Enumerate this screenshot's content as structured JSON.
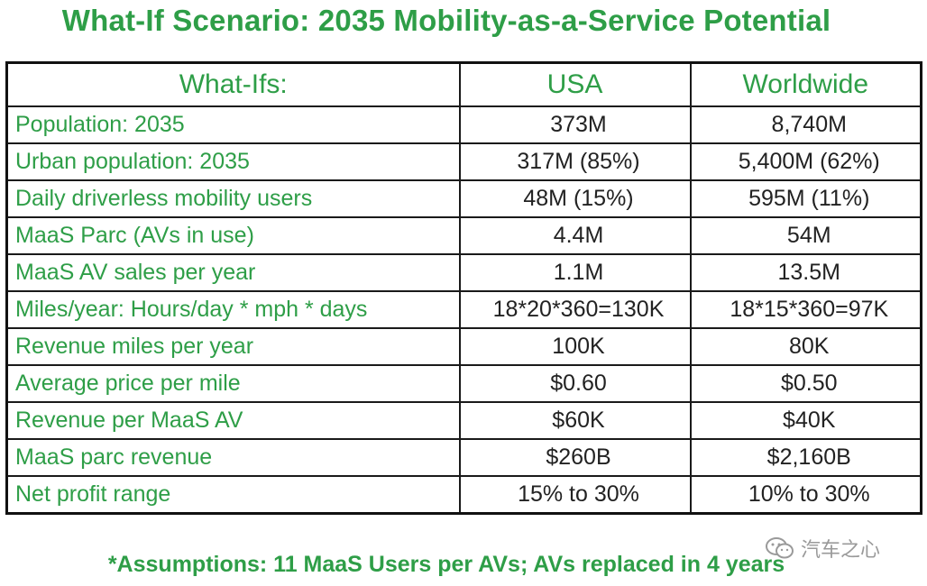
{
  "title": "What-If Scenario: 2035 Mobility-as-a-Service Potential",
  "table": {
    "headers": [
      "What-Ifs:",
      "USA",
      "Worldwide"
    ],
    "rows": [
      {
        "label": "Population: 2035",
        "usa": "373M",
        "world": "8,740M"
      },
      {
        "label": "Urban population: 2035",
        "usa": "317M (85%)",
        "world": "5,400M (62%)"
      },
      {
        "label": "Daily driverless mobility users",
        "usa": "48M (15%)",
        "world": "595M (11%)"
      },
      {
        "label": "MaaS Parc (AVs in use)",
        "usa": "4.4M",
        "world": "54M"
      },
      {
        "label": "MaaS AV sales per year",
        "usa": "1.1M",
        "world": "13.5M"
      },
      {
        "label": "Miles/year: Hours/day * mph * days",
        "usa": "18*20*360=130K",
        "world": "18*15*360=97K"
      },
      {
        "label": "Revenue miles per year",
        "usa": "100K",
        "world": "80K"
      },
      {
        "label": "Average price per mile",
        "usa": "$0.60",
        "world": "$0.50"
      },
      {
        "label": "Revenue per MaaS AV",
        "usa": "$60K",
        "world": "$40K"
      },
      {
        "label": "MaaS parc revenue",
        "usa": "$260B",
        "world": "$2,160B"
      },
      {
        "label": "Net profit range",
        "usa": "15% to 30%",
        "world": "10% to 30%"
      }
    ]
  },
  "footnote": "*Assumptions: 11 MaaS Users per AVs; AVs replaced in 4 years",
  "watermark": {
    "text": "汽车之心",
    "icon": "wechat-icon"
  },
  "colors": {
    "accent": "#2e9e47",
    "text": "#222222",
    "border": "#1a1a1a"
  }
}
